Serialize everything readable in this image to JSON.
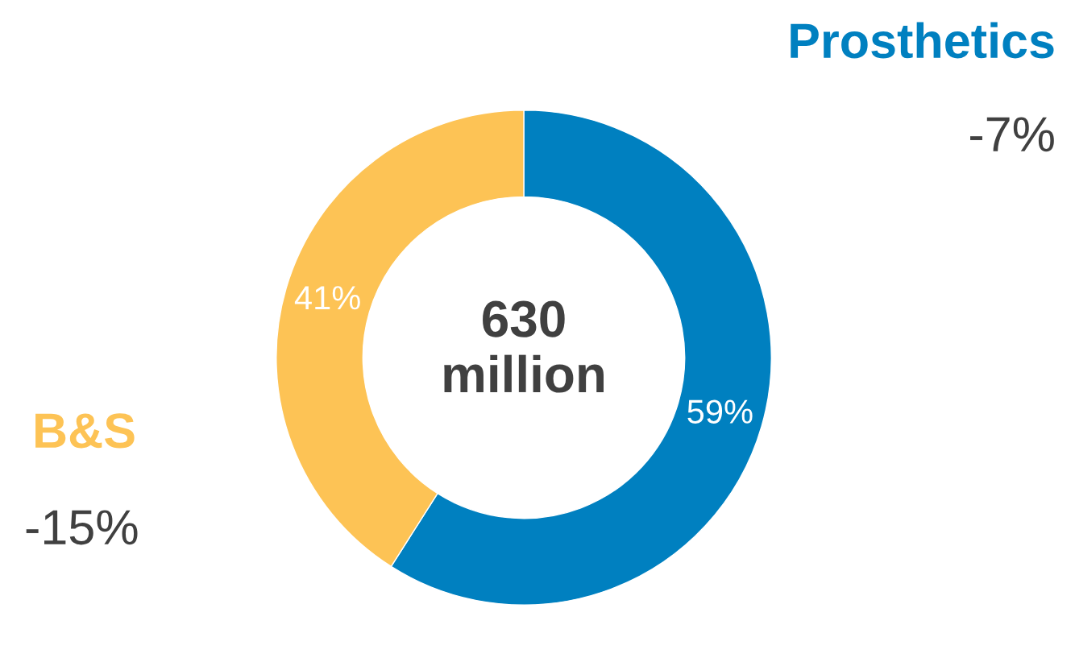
{
  "chart_data": {
    "type": "donut",
    "categories": [
      "Prosthetics",
      "B&S"
    ],
    "values": [
      59,
      41
    ],
    "colors": [
      "#0080c0",
      "#fdc355"
    ],
    "value_labels": [
      "59%",
      "41%"
    ],
    "annotations": [
      "630\nmillion",
      "-7%",
      "-15%"
    ],
    "legend": false
  }
}
